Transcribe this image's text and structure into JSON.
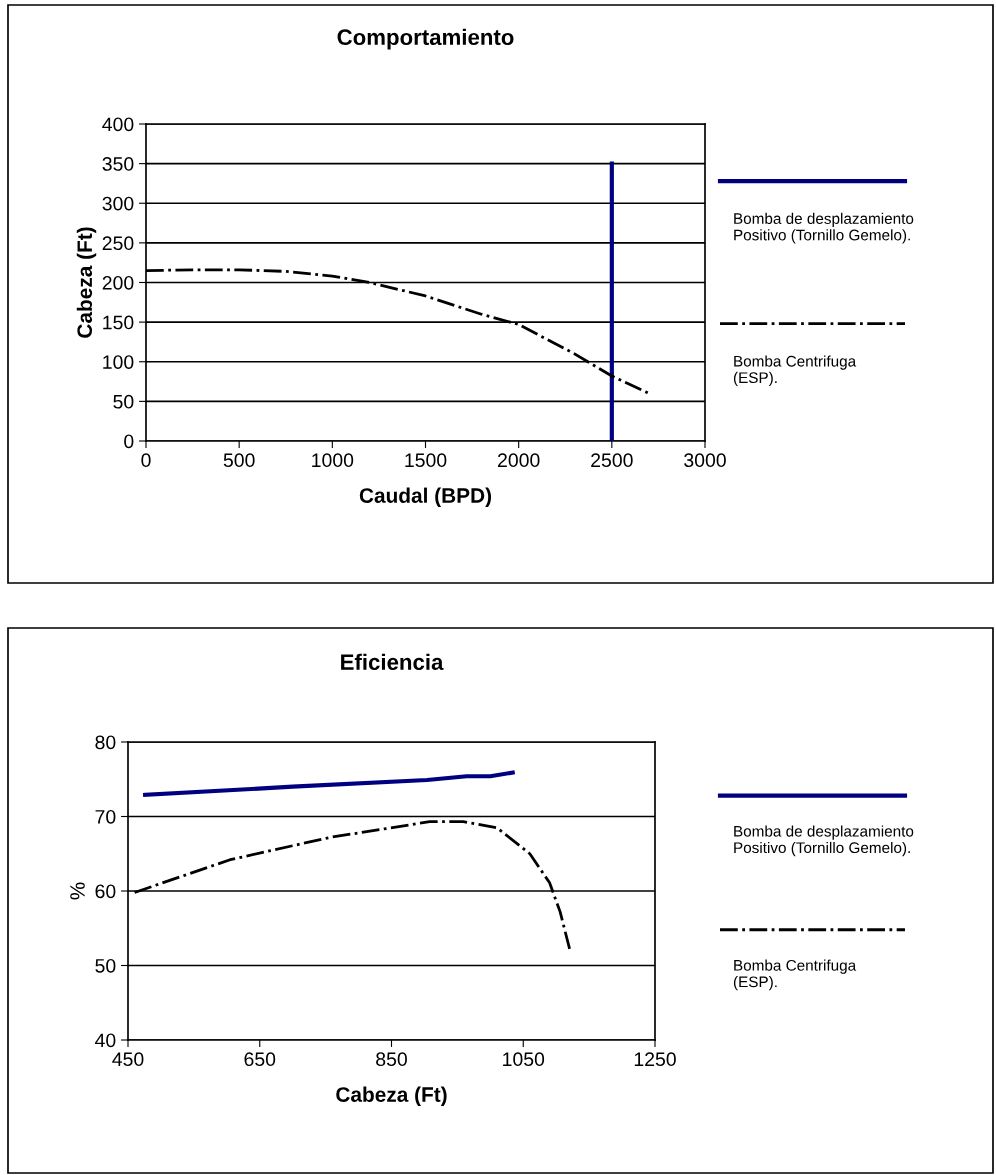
{
  "chart_data": [
    {
      "type": "line",
      "title": "Comportamiento",
      "xlabel": "Caudal (BPD)",
      "ylabel": "Cabeza (Ft)",
      "xlim": [
        0,
        3000
      ],
      "xticks": [
        0,
        500,
        1000,
        1500,
        2000,
        2500,
        3000
      ],
      "ylim": [
        0,
        400
      ],
      "yticks": [
        0,
        50,
        100,
        150,
        200,
        250,
        300,
        350,
        400
      ],
      "grid": "y",
      "legend": "right",
      "marker": "none",
      "series": [
        {
          "name": "Bomba de desplazamiento\nPositivo (Tornillo Gemelo).",
          "color": "#000080",
          "line_style": "solid",
          "x": [
            2500,
            2500
          ],
          "values": [
            0,
            350
          ]
        },
        {
          "name": "Bomba Centrifuga\n(ESP).",
          "color": "#000000",
          "line_style": "dashdot",
          "x": [
            0,
            250,
            500,
            750,
            1000,
            1200,
            1500,
            1800,
            2000,
            2300,
            2500,
            2700
          ],
          "values": [
            215,
            216,
            216,
            214,
            208,
            200,
            183,
            160,
            147,
            110,
            82,
            60
          ]
        }
      ]
    },
    {
      "type": "line",
      "title": "Eficiencia",
      "xlabel": "Cabeza (Ft)",
      "ylabel": "%",
      "xlim": [
        450,
        1250
      ],
      "xticks": [
        450,
        650,
        850,
        1050,
        1250
      ],
      "ylim": [
        40,
        80
      ],
      "yticks": [
        40,
        50,
        60,
        70,
        80
      ],
      "grid": "y",
      "legend": "right",
      "marker": "none",
      "series": [
        {
          "name": "Bomba de desplazamiento\nPositivo (Tornillo Gemelo).",
          "color": "#000080",
          "line_style": "solid",
          "x": [
            476,
            700,
            904,
            964,
            1000,
            1034
          ],
          "values": [
            72.9,
            74.0,
            74.9,
            75.4,
            75.4,
            75.9
          ]
        },
        {
          "name": "Bomba Centrifuga\n(ESP).",
          "color": "#000000",
          "line_style": "dashdot",
          "x": [
            460,
            605,
            757,
            908,
            959,
            1010,
            1060,
            1090,
            1106,
            1121
          ],
          "values": [
            59.8,
            64.2,
            67.2,
            69.3,
            69.3,
            68.5,
            65.0,
            61.1,
            57.2,
            52.0
          ]
        }
      ]
    }
  ]
}
